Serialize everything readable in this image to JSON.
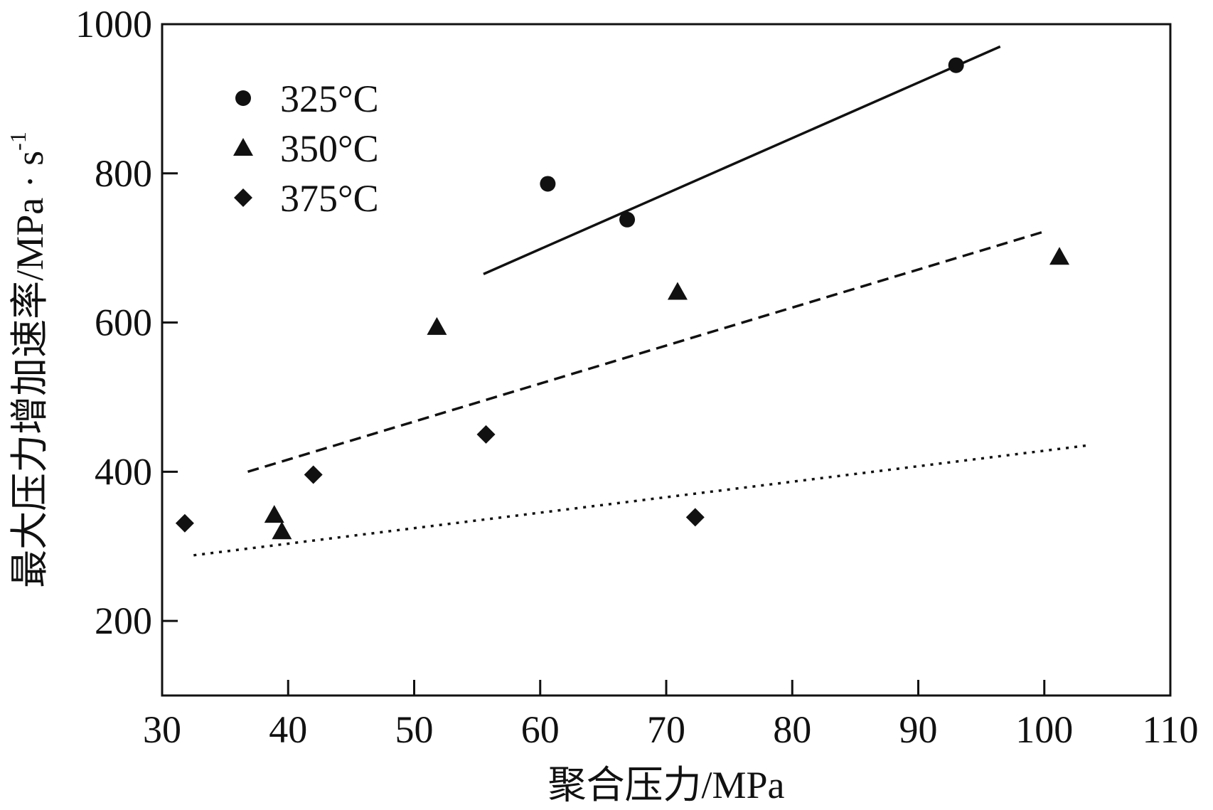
{
  "chart_data": {
    "type": "scatter",
    "xlabel": "聚合压力/MPa",
    "ylabel": "最大压力增加速率/MPa · s",
    "ylabel_superscript": "-1",
    "xlim": [
      30,
      110
    ],
    "ylim": [
      100,
      1000
    ],
    "x_ticks": [
      30,
      40,
      50,
      60,
      70,
      80,
      90,
      100,
      110
    ],
    "y_ticks": [
      200,
      400,
      600,
      800,
      1000
    ],
    "grid": false,
    "legend_position": "top-left",
    "series": [
      {
        "name": "325°C",
        "marker": "circle",
        "points": [
          [
            60.6,
            786
          ],
          [
            66.9,
            738
          ],
          [
            93,
            945
          ]
        ],
        "fit_line": {
          "style": "solid",
          "from": [
            55.5,
            665
          ],
          "to": [
            96.5,
            970
          ]
        }
      },
      {
        "name": "350°C",
        "marker": "triangle",
        "points": [
          [
            38.9,
            342
          ],
          [
            39.5,
            320
          ],
          [
            51.8,
            594
          ],
          [
            70.9,
            641
          ],
          [
            101.2,
            688
          ]
        ],
        "fit_line": {
          "style": "dashed",
          "from": [
            36.8,
            400
          ],
          "to": [
            100,
            722
          ]
        }
      },
      {
        "name": "375°C",
        "marker": "diamond",
        "points": [
          [
            31.8,
            331
          ],
          [
            42,
            396
          ],
          [
            55.7,
            450
          ],
          [
            72.3,
            339
          ]
        ],
        "fit_line": {
          "style": "dotted",
          "from": [
            32.5,
            288
          ],
          "to": [
            103.3,
            435
          ]
        }
      }
    ]
  }
}
